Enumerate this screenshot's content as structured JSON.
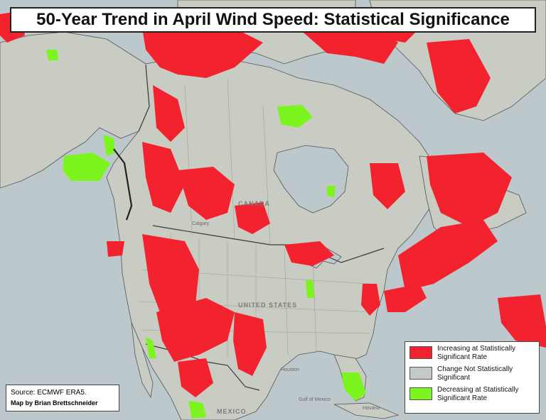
{
  "title": "50-Year Trend in April Wind Speed: Statistical Significance",
  "source": "Source: ECMWF ERA5.",
  "credit": "Map by Brian Brettschneider",
  "colors": {
    "ocean": "#bcc8cc",
    "land": "#c9ccc3",
    "increasing": "#f2232e",
    "decreasing": "#7cf51e",
    "not_significant": "#c4c9c9",
    "border": "#3a3a3a"
  },
  "legend": [
    {
      "label": "Increasing at Statistically Significant Rate",
      "color": "#f2232e"
    },
    {
      "label": "Change Not Statistically Significant",
      "color": "#c4c9c9"
    },
    {
      "label": "Decreasing at Statistically Significant Rate",
      "color": "#7cf51e"
    }
  ],
  "places": {
    "canada": "CANADA",
    "united_states": "UNITED STATES",
    "mexico": "MEXICO",
    "calgary": "Calgary",
    "houston": "Houston",
    "havana": "Havana",
    "gulf": "Gulf of Mexico"
  }
}
